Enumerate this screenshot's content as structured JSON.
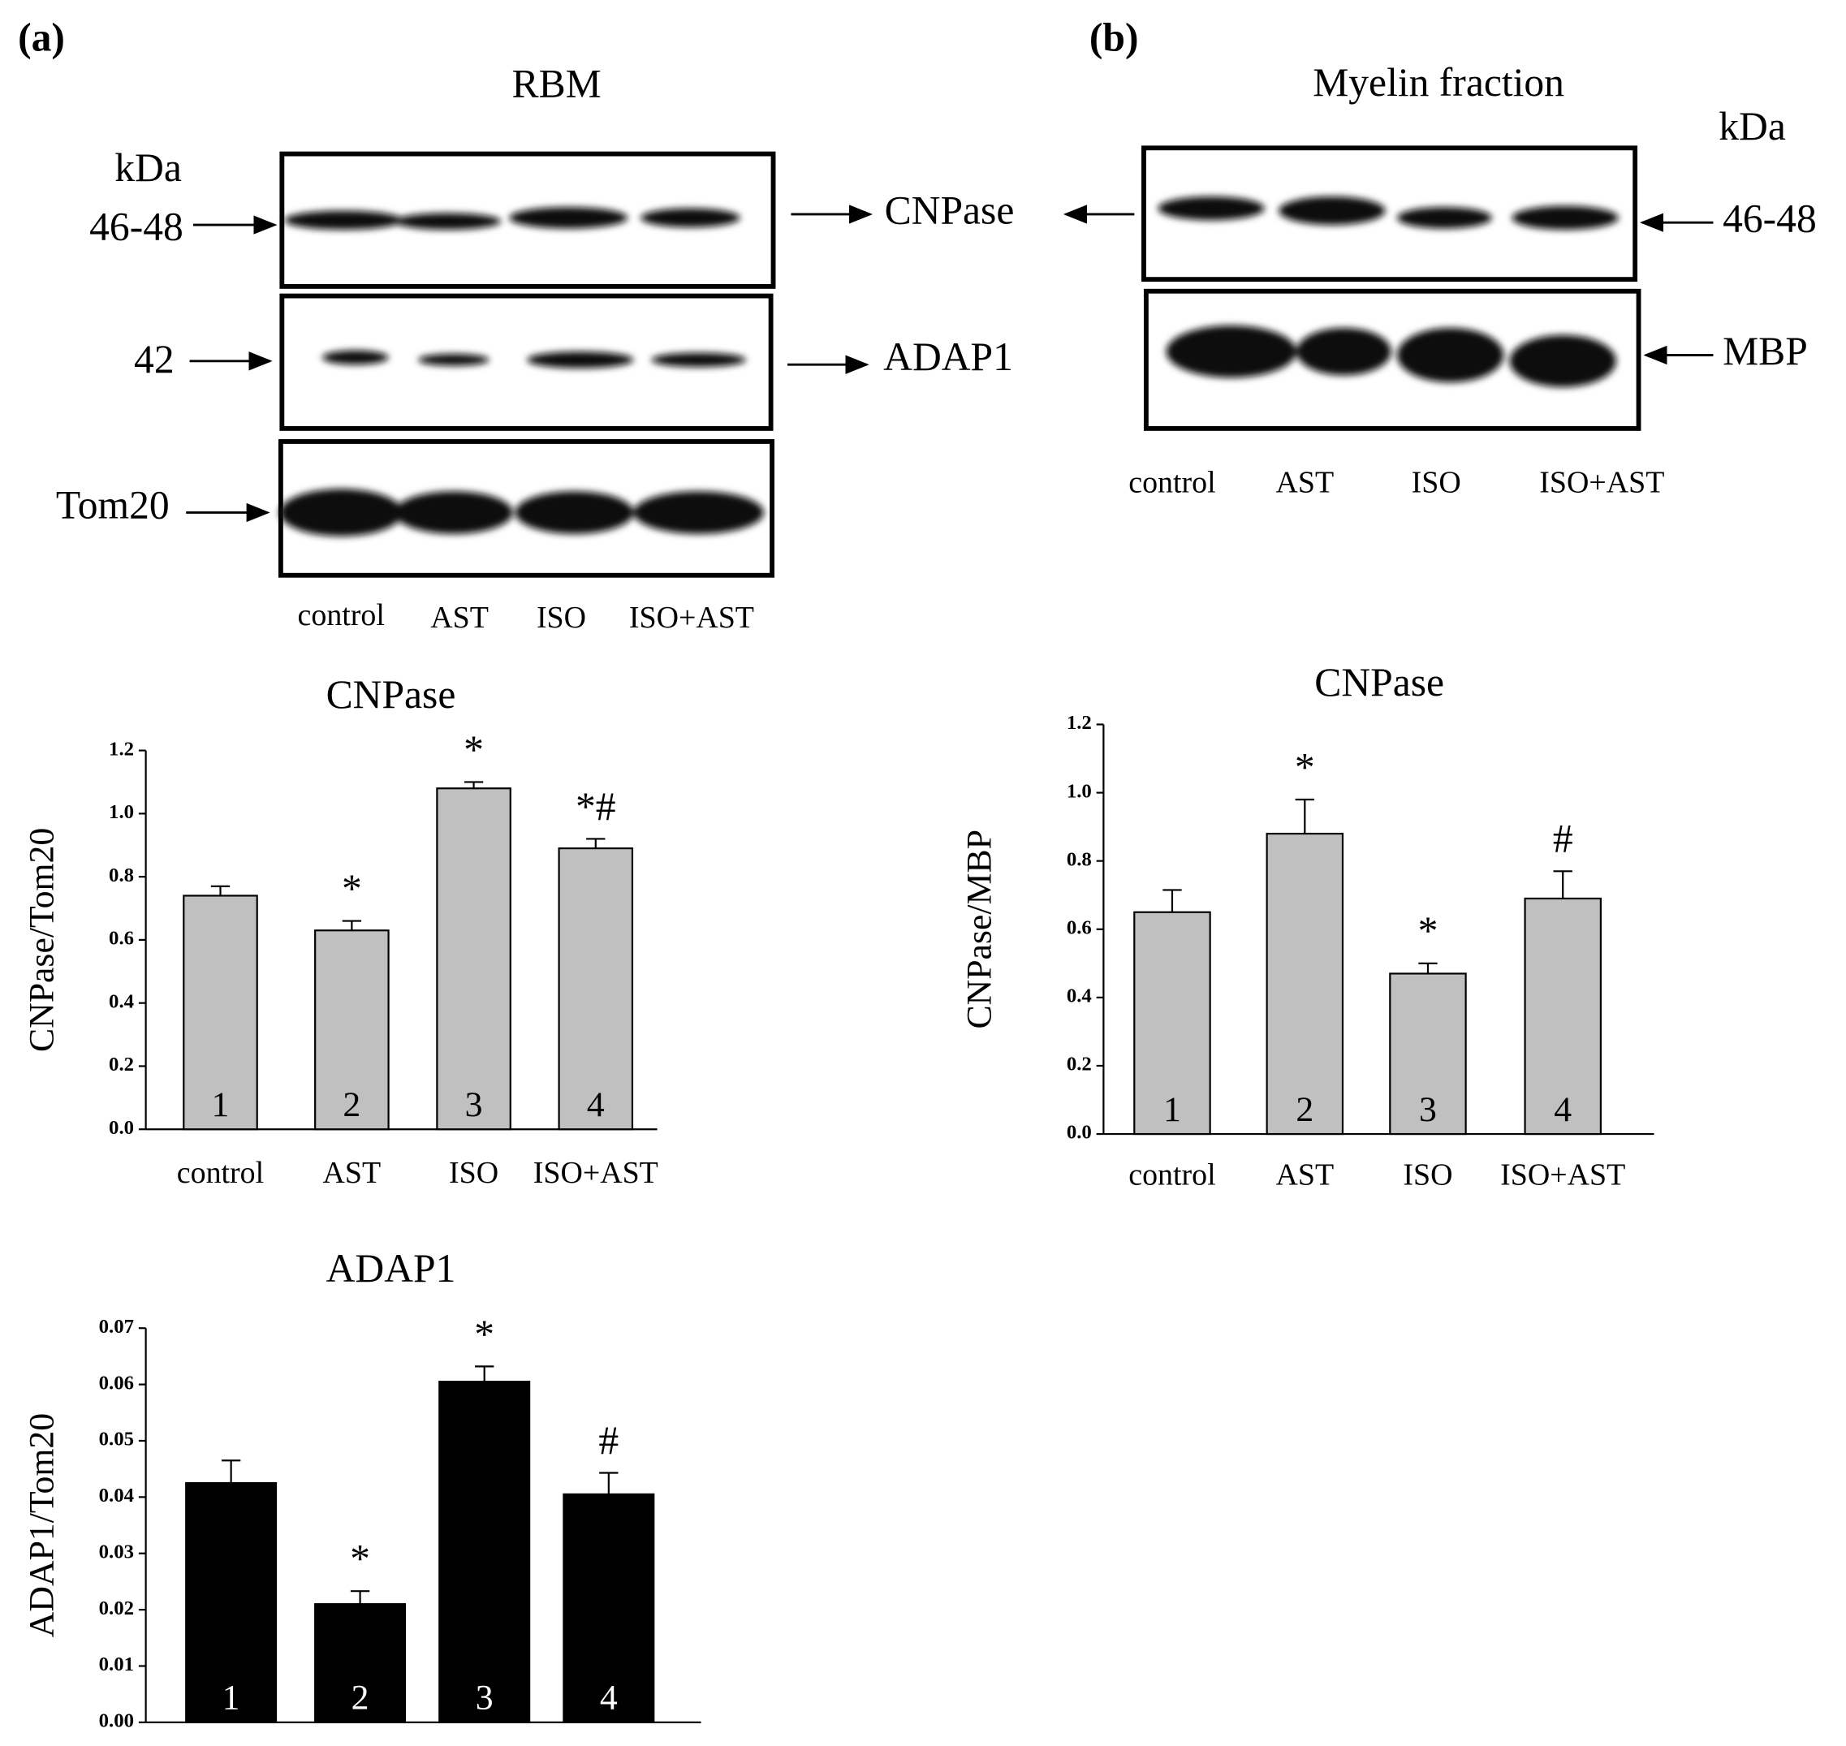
{
  "panels": [
    {
      "label": "(a)",
      "title": "RBM",
      "unit": "kDa",
      "left_labels": [
        "46-48",
        "42",
        "Tom20"
      ],
      "right_labels": [
        "CNPase",
        "ADAP1"
      ],
      "lanes": [
        "control",
        "AST",
        "ISO",
        "ISO+AST"
      ]
    },
    {
      "label": "(b)",
      "title": "Myelin fraction",
      "unit": "kDa",
      "right_labels": [
        "46-48",
        "MBP"
      ],
      "lanes": [
        "control",
        "AST",
        "ISO",
        "ISO+AST"
      ]
    }
  ],
  "chart_data": [
    {
      "type": "bar",
      "title": "CNPase",
      "y_label": "CNPase/Tom20",
      "categories": [
        "control",
        "AST",
        "ISO",
        "ISO+AST"
      ],
      "bar_labels": [
        "1",
        "2",
        "3",
        "4"
      ],
      "values": [
        0.74,
        0.63,
        1.08,
        0.89
      ],
      "errors": [
        0.03,
        0.03,
        0.02,
        0.03
      ],
      "annotations": [
        null,
        "*",
        "*",
        "*#"
      ],
      "color": "#c0c0c0",
      "ylim": [
        0,
        1.2
      ],
      "yticks": [
        {
          "value": 0,
          "label": "0.0"
        },
        0.2,
        0.4,
        0.6,
        0.8,
        {
          "value": 1,
          "label": "1.0"
        },
        1.2
      ]
    },
    {
      "type": "bar",
      "title": "CNPase",
      "y_label": "CNPase/MBP",
      "categories": [
        "control",
        "AST",
        "ISO",
        "ISO+AST"
      ],
      "bar_labels": [
        "1",
        "2",
        "3",
        "4"
      ],
      "values": [
        0.65,
        0.88,
        0.47,
        0.69
      ],
      "errors": [
        0.065,
        0.1,
        0.03,
        0.08
      ],
      "annotations": [
        null,
        "*",
        "*",
        "#"
      ],
      "color": "#c0c0c0",
      "ylim": [
        0,
        1.2
      ],
      "yticks": [
        {
          "value": 0,
          "label": "0.0"
        },
        0.2,
        0.4,
        0.6,
        0.8,
        {
          "value": 1,
          "label": "1.0"
        },
        1.2
      ]
    },
    {
      "type": "bar",
      "title": "ADAP1",
      "y_label": "ADAP1/Tom20",
      "categories": [
        null,
        null,
        null,
        null
      ],
      "bar_labels": [
        "1",
        "2",
        "3",
        "4"
      ],
      "values": [
        0.0425,
        0.021,
        0.0605,
        0.0405
      ],
      "errors": [
        0.004,
        0.0023,
        0.0027,
        0.0038
      ],
      "annotations": [
        null,
        "*",
        "*",
        "#"
      ],
      "color": "#000000",
      "ylim": [
        0,
        0.07
      ],
      "yticks": [
        {
          "value": 0,
          "label": "0.00"
        },
        0.01,
        0.02,
        0.03,
        0.04,
        0.05,
        0.06,
        0.07
      ]
    }
  ]
}
